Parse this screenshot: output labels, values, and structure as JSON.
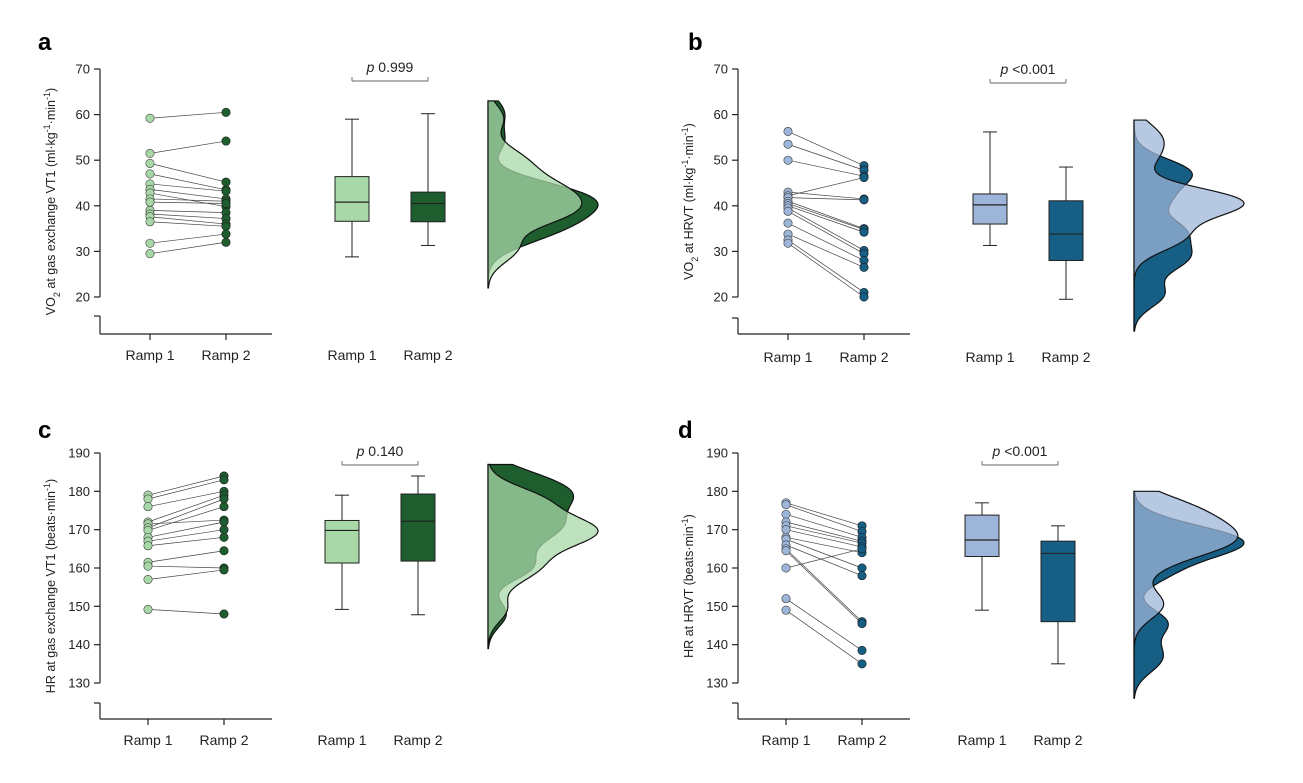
{
  "chart_data": [
    {
      "panel": "a",
      "type": "paired-scatter + boxplot + density",
      "ylabel_main": "VO",
      "ylabel_sub": "2",
      "ylabel_rest": " at gas exchange VT1 (ml·kg",
      "ylabel_sup1": "-1",
      "ylabel_mid": "·min",
      "ylabel_sup2": "-1",
      "ylabel_end": ")",
      "ylim": [
        20,
        70
      ],
      "yticks": [
        "20",
        "30",
        "40",
        "50",
        "60",
        "70"
      ],
      "categories": [
        "Ramp 1",
        "Ramp 2"
      ],
      "p_prefix": "p",
      "p_value": " 0.999",
      "colors": {
        "ramp1": "#a8d8a8",
        "ramp2": "#1e5e2e",
        "mix": "#4a9a64"
      },
      "series": [
        {
          "name": "Ramp 1",
          "values": [
            59.2,
            51.5,
            49.3,
            47,
            44.8,
            43.6,
            42.8,
            41.5,
            40.8,
            39,
            38.2,
            37.6,
            36.5,
            31.8,
            29.5
          ]
        },
        {
          "name": "Ramp 2",
          "values": [
            60.5,
            54.2,
            45.2,
            43.5,
            43.2,
            41.5,
            39.8,
            41,
            40.5,
            38.5,
            37.2,
            36,
            35.5,
            33.8,
            32
          ]
        }
      ],
      "box": [
        {
          "min": 28.8,
          "q1": 36.6,
          "median": 40.8,
          "q3": 46.4,
          "max": 59
        },
        {
          "min": 31.3,
          "q1": 36.5,
          "median": 40.5,
          "q3": 43,
          "max": 60.2
        }
      ]
    },
    {
      "panel": "b",
      "type": "paired-scatter + boxplot + density",
      "ylabel_main": "VO",
      "ylabel_sub": "2",
      "ylabel_rest": " at HRVT (ml·kg",
      "ylabel_sup1": "-1",
      "ylabel_mid": "·min",
      "ylabel_sup2": "-1",
      "ylabel_end": ")",
      "ylim": [
        20,
        70
      ],
      "yticks": [
        "20",
        "30",
        "40",
        "50",
        "60",
        "70"
      ],
      "categories": [
        "Ramp 1",
        "Ramp 2"
      ],
      "p_prefix": "p",
      "p_value": " <0.001",
      "colors": {
        "ramp1": "#9db5d8",
        "ramp2": "#165e84",
        "mix": "#5c92b8"
      },
      "series": [
        {
          "name": "Ramp 1",
          "values": [
            56.3,
            53.5,
            50,
            43,
            42.2,
            41.8,
            41,
            40.5,
            40,
            39.5,
            38.8,
            36.2,
            33.8,
            32.5,
            31.8
          ]
        },
        {
          "name": "Ramp 2",
          "values": [
            48.8,
            47.8,
            46.5,
            41.5,
            46.2,
            41.3,
            35,
            34.8,
            34.2,
            30.2,
            29.5,
            28,
            26.5,
            21,
            20
          ]
        }
      ],
      "box": [
        {
          "min": 31.3,
          "q1": 36,
          "median": 40.2,
          "q3": 42.6,
          "max": 56.2
        },
        {
          "min": 19.5,
          "q1": 28,
          "median": 33.8,
          "q3": 41.1,
          "max": 48.5
        }
      ]
    },
    {
      "panel": "c",
      "type": "paired-scatter + boxplot + density",
      "ylabel_main": "HR at gas exchange VT1 (beats·min",
      "ylabel_sub": "",
      "ylabel_rest": "",
      "ylabel_sup1": "-1",
      "ylabel_mid": "",
      "ylabel_sup2": "",
      "ylabel_end": ")",
      "ylim": [
        130,
        190
      ],
      "yticks": [
        "130",
        "140",
        "150",
        "160",
        "170",
        "180",
        "190"
      ],
      "categories": [
        "Ramp 1",
        "Ramp 2"
      ],
      "p_prefix": "p",
      "p_value": " 0.140",
      "colors": {
        "ramp1": "#a8d8a8",
        "ramp2": "#1e5e2e",
        "mix": "#6ab27a"
      },
      "series": [
        {
          "name": "Ramp 1",
          "values": [
            179,
            178,
            176,
            172,
            171.5,
            170.5,
            169.8,
            168,
            167,
            165.8,
            161.5,
            160.5,
            157,
            149.2
          ]
        },
        {
          "name": "Ramp 2",
          "values": [
            184,
            183,
            180,
            179,
            172.5,
            178,
            176,
            172,
            170,
            168,
            164.5,
            160,
            159.5,
            148
          ]
        }
      ],
      "box": [
        {
          "min": 149.2,
          "q1": 161.3,
          "median": 169.8,
          "q3": 172.4,
          "max": 179
        },
        {
          "min": 147.8,
          "q1": 161.8,
          "median": 172.2,
          "q3": 179.3,
          "max": 184
        }
      ]
    },
    {
      "panel": "d",
      "type": "paired-scatter + boxplot + density",
      "ylabel_main": "HR at HRVT (beats·min",
      "ylabel_sub": "",
      "ylabel_rest": "",
      "ylabel_sup1": "-1",
      "ylabel_mid": "",
      "ylabel_sup2": "",
      "ylabel_end": ")",
      "ylim": [
        130,
        190
      ],
      "yticks": [
        "130",
        "140",
        "150",
        "160",
        "170",
        "180",
        "190"
      ],
      "categories": [
        "Ramp 1",
        "Ramp 2"
      ],
      "p_prefix": "p",
      "p_value": " <0.001",
      "colors": {
        "ramp1": "#9db5d8",
        "ramp2": "#165e84",
        "mix": "#5c92b8"
      },
      "series": [
        {
          "name": "Ramp 1",
          "values": [
            177,
            176.5,
            174,
            172,
            171,
            170,
            168,
            167.5,
            166,
            165,
            164.5,
            160,
            152,
            149
          ]
        },
        {
          "name": "Ramp 2",
          "values": [
            171,
            169.5,
            168,
            167,
            166.5,
            165.5,
            164,
            160,
            158,
            146,
            145.5,
            165,
            138.5,
            135
          ]
        }
      ],
      "box": [
        {
          "min": 149,
          "q1": 163,
          "median": 167.3,
          "q3": 173.8,
          "max": 177
        },
        {
          "min": 135,
          "q1": 146,
          "median": 163.8,
          "q3": 167,
          "max": 171
        }
      ]
    }
  ]
}
